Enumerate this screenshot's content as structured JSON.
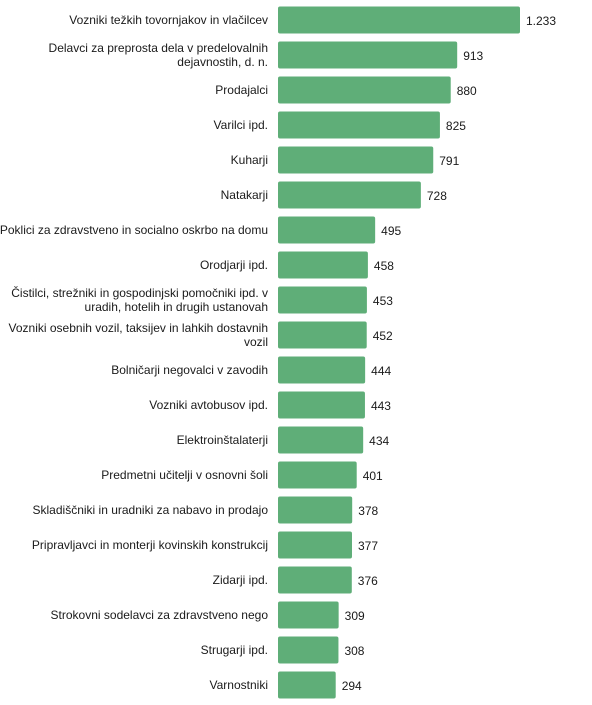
{
  "chart_data": {
    "type": "bar",
    "orientation": "horizontal",
    "title": "",
    "xlabel": "",
    "ylabel": "",
    "grid": false,
    "legend": "none",
    "xlim": [
      0,
      1233
    ],
    "bar_color": "#5fae78",
    "categories": [
      "Vozniki težkih tovornjakov in vlačilcev",
      "Delavci za preprosta dela v predelovalnih dejavnostih, d. n.",
      "Prodajalci",
      "Varilci ipd.",
      "Kuharji",
      "Natakarji",
      "Poklici za zdravstveno in socialno oskrbo na domu",
      "Orodjarji ipd.",
      "Čistilci, strežniki in gospodinjski pomočniki ipd. v uradih, hotelih in drugih ustanovah",
      "Vozniki osebnih vozil, taksijev in lahkih dostavnih vozil",
      "Bolničarji negovalci v zavodih",
      "Vozniki avtobusov ipd.",
      "Elektroinštalaterji",
      "Predmetni učitelji v osnovni šoli",
      "Skladiščniki in uradniki za nabavo in prodajo",
      "Pripravljavci in monterji kovinskih konstrukcij",
      "Zidarji ipd.",
      "Strokovni sodelavci za zdravstveno nego",
      "Strugarji ipd.",
      "Varnostniki"
    ],
    "category_lines": [
      [
        "Vozniki težkih tovornjakov in vlačilcev"
      ],
      [
        "Delavci za preprosta dela v predelovalnih",
        "dejavnostih, d. n."
      ],
      [
        "Prodajalci"
      ],
      [
        "Varilci ipd."
      ],
      [
        "Kuharji"
      ],
      [
        "Natakarji"
      ],
      [
        "Poklici za zdravstveno in socialno oskrbo na domu"
      ],
      [
        "Orodjarji ipd."
      ],
      [
        "Čistilci, strežniki in gospodinjski pomočniki ipd. v",
        "uradih, hotelih in drugih ustanovah"
      ],
      [
        "Vozniki osebnih vozil, taksijev in lahkih dostavnih",
        "vozil"
      ],
      [
        "Bolničarji negovalci v zavodih"
      ],
      [
        "Vozniki avtobusov ipd."
      ],
      [
        "Elektroinštalaterji"
      ],
      [
        "Predmetni učitelji v osnovni šoli"
      ],
      [
        "Skladiščniki in uradniki za nabavo in prodajo"
      ],
      [
        "Pripravljavci in monterji kovinskih konstrukcij"
      ],
      [
        "Zidarji ipd."
      ],
      [
        "Strokovni sodelavci za zdravstveno nego"
      ],
      [
        "Strugarji ipd."
      ],
      [
        "Varnostniki"
      ]
    ],
    "values": [
      1233,
      913,
      880,
      825,
      791,
      728,
      495,
      458,
      453,
      452,
      444,
      443,
      434,
      401,
      378,
      377,
      376,
      309,
      308,
      294
    ],
    "value_labels": [
      "1.233",
      "913",
      "880",
      "825",
      "791",
      "728",
      "495",
      "458",
      "453",
      "452",
      "444",
      "443",
      "434",
      "401",
      "378",
      "377",
      "376",
      "309",
      "308",
      "294"
    ]
  }
}
